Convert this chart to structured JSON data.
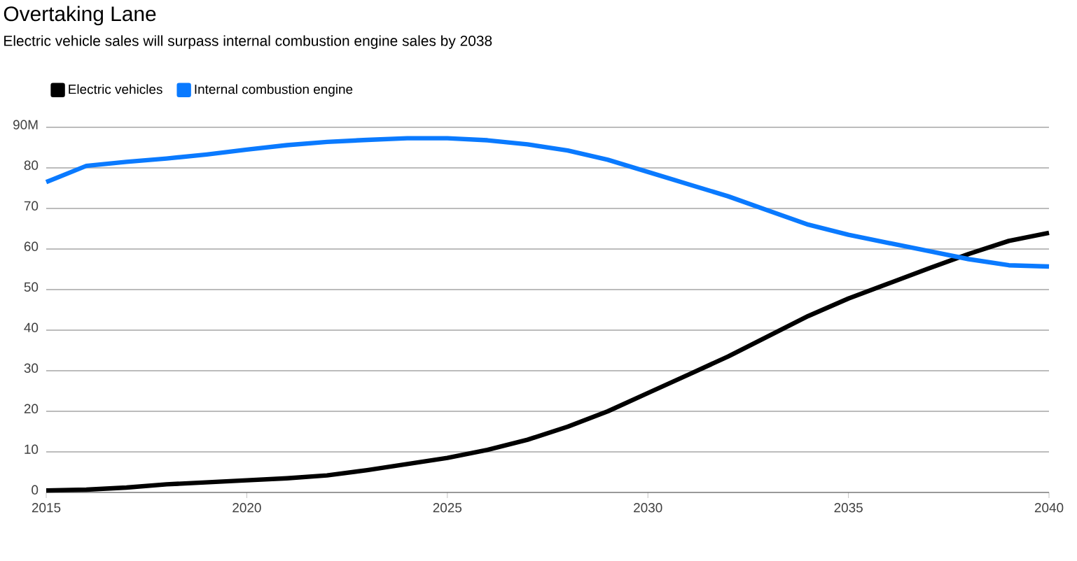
{
  "chart_data": {
    "type": "line",
    "title": "Overtaking Lane",
    "subtitle": "Electric vehicle sales will surpass internal combustion engine sales by 2038",
    "x": [
      2015,
      2016,
      2017,
      2018,
      2019,
      2020,
      2021,
      2022,
      2023,
      2024,
      2025,
      2026,
      2027,
      2028,
      2029,
      2030,
      2031,
      2032,
      2033,
      2034,
      2035,
      2036,
      2037,
      2038,
      2039,
      2040
    ],
    "series": [
      {
        "name": "Electric vehicles",
        "color": "#000000",
        "values": [
          0.5,
          0.7,
          1.2,
          2,
          2.5,
          3,
          3.5,
          4.2,
          5.5,
          7,
          8.5,
          10.5,
          13,
          16.2,
          20,
          24.5,
          29,
          33.5,
          38.5,
          43.5,
          47.8,
          51.5,
          55.2,
          58.8,
          62,
          64
        ]
      },
      {
        "name": "Internal combustion engine",
        "color": "#0a7aff",
        "values": [
          76.5,
          80.5,
          81.5,
          82.3,
          83.3,
          84.5,
          85.6,
          86.4,
          86.9,
          87.3,
          87.3,
          86.8,
          85.8,
          84.3,
          82,
          79,
          76,
          73,
          69.5,
          66,
          63.5,
          61.5,
          59.5,
          57.5,
          56,
          55.7
        ]
      }
    ],
    "xlim": [
      2015,
      2040
    ],
    "xticks": [
      2015,
      2020,
      2025,
      2030,
      2035,
      2040
    ],
    "ylim": [
      0,
      90
    ],
    "yticks": [
      0,
      10,
      20,
      30,
      40,
      50,
      60,
      70,
      80,
      {
        "value": 90,
        "label": "90M"
      }
    ],
    "grid": "y",
    "legend": "top left",
    "line_style": "solid",
    "marker": "none"
  }
}
